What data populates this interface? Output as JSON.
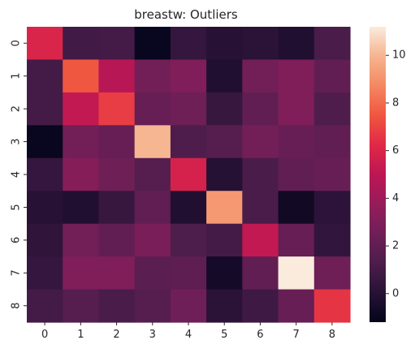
{
  "chart_data": {
    "type": "heatmap",
    "title": "breastw: Outliers",
    "x_categories": [
      "0",
      "1",
      "2",
      "3",
      "4",
      "5",
      "6",
      "7",
      "8"
    ],
    "y_categories": [
      "0",
      "1",
      "2",
      "3",
      "4",
      "5",
      "6",
      "7",
      "8"
    ],
    "values": [
      [
        6.0,
        0.9,
        1.0,
        -1.0,
        0.5,
        0.0,
        0.1,
        -0.2,
        1.2
      ],
      [
        1.0,
        7.5,
        4.8,
        2.6,
        3.0,
        -0.2,
        2.6,
        3.0,
        2.0
      ],
      [
        1.0,
        5.2,
        6.8,
        2.2,
        2.4,
        0.6,
        2.0,
        3.0,
        1.4
      ],
      [
        -1.0,
        2.6,
        2.2,
        10.0,
        1.4,
        1.6,
        2.6,
        2.2,
        2.0
      ],
      [
        0.5,
        3.2,
        2.4,
        1.6,
        5.8,
        -0.1,
        1.2,
        2.0,
        2.2
      ],
      [
        0.0,
        -0.2,
        0.6,
        2.0,
        -0.2,
        9.2,
        1.2,
        -0.7,
        0.2
      ],
      [
        0.3,
        2.6,
        2.0,
        2.8,
        1.3,
        1.0,
        5.2,
        2.2,
        0.4
      ],
      [
        0.5,
        3.0,
        3.0,
        1.8,
        1.9,
        -0.6,
        2.0,
        11.2,
        2.4
      ],
      [
        1.0,
        1.6,
        1.2,
        1.6,
        2.5,
        0.1,
        0.8,
        2.2,
        6.6
      ]
    ],
    "vmin": -1.2,
    "vmax": 11.2,
    "colorbar_ticks": [
      0,
      2,
      4,
      6,
      8,
      10
    ],
    "colorbar_tick_labels": [
      "0",
      "2",
      "4",
      "6",
      "8",
      "10"
    ],
    "colormap": "rocket",
    "grid": false,
    "legend": "colorbar-right"
  }
}
